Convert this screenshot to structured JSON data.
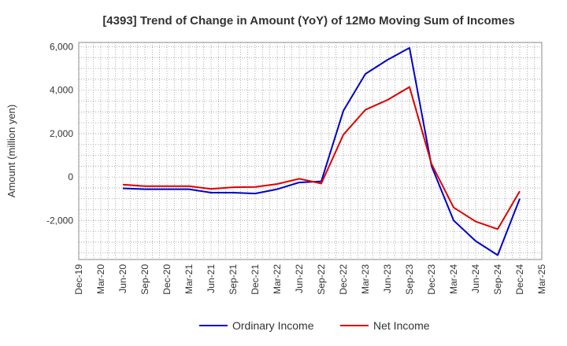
{
  "chart_data": {
    "type": "line",
    "title": "[4393]  Trend of Change in Amount (YoY) of 12Mo Moving Sum of Incomes",
    "ylabel": "Amount (million yen)",
    "xlabel": "",
    "ylim": [
      -3800,
      6200
    ],
    "yticks": [
      -2000,
      0,
      2000,
      4000,
      6000
    ],
    "ytick_labels": [
      "-2,000",
      "0",
      "2,000",
      "4,000",
      "6,000"
    ],
    "categories": [
      "Dec-19",
      "Mar-20",
      "Jun-20",
      "Sep-20",
      "Dec-20",
      "Mar-21",
      "Jun-21",
      "Sep-21",
      "Dec-21",
      "Mar-22",
      "Jun-22",
      "Sep-22",
      "Dec-22",
      "Mar-23",
      "Jun-23",
      "Sep-23",
      "Dec-23",
      "Mar-24",
      "Jun-24",
      "Sep-24",
      "Dec-24",
      "Mar-25"
    ],
    "grid": true,
    "legend_position": "bottom",
    "series": [
      {
        "name": "Ordinary Income",
        "color": "#0000cc",
        "values": [
          null,
          null,
          -520,
          -560,
          -560,
          -560,
          -720,
          -720,
          -760,
          -560,
          -250,
          -200,
          3050,
          4750,
          5400,
          5950,
          500,
          -2000,
          -2950,
          -3600,
          -1000,
          null
        ]
      },
      {
        "name": "Net Income",
        "color": "#dd0000",
        "values": [
          null,
          null,
          -350,
          -420,
          -420,
          -420,
          -550,
          -470,
          -460,
          -320,
          -80,
          -300,
          1950,
          3100,
          3550,
          4150,
          600,
          -1400,
          -2050,
          -2400,
          -650,
          null
        ]
      }
    ]
  }
}
